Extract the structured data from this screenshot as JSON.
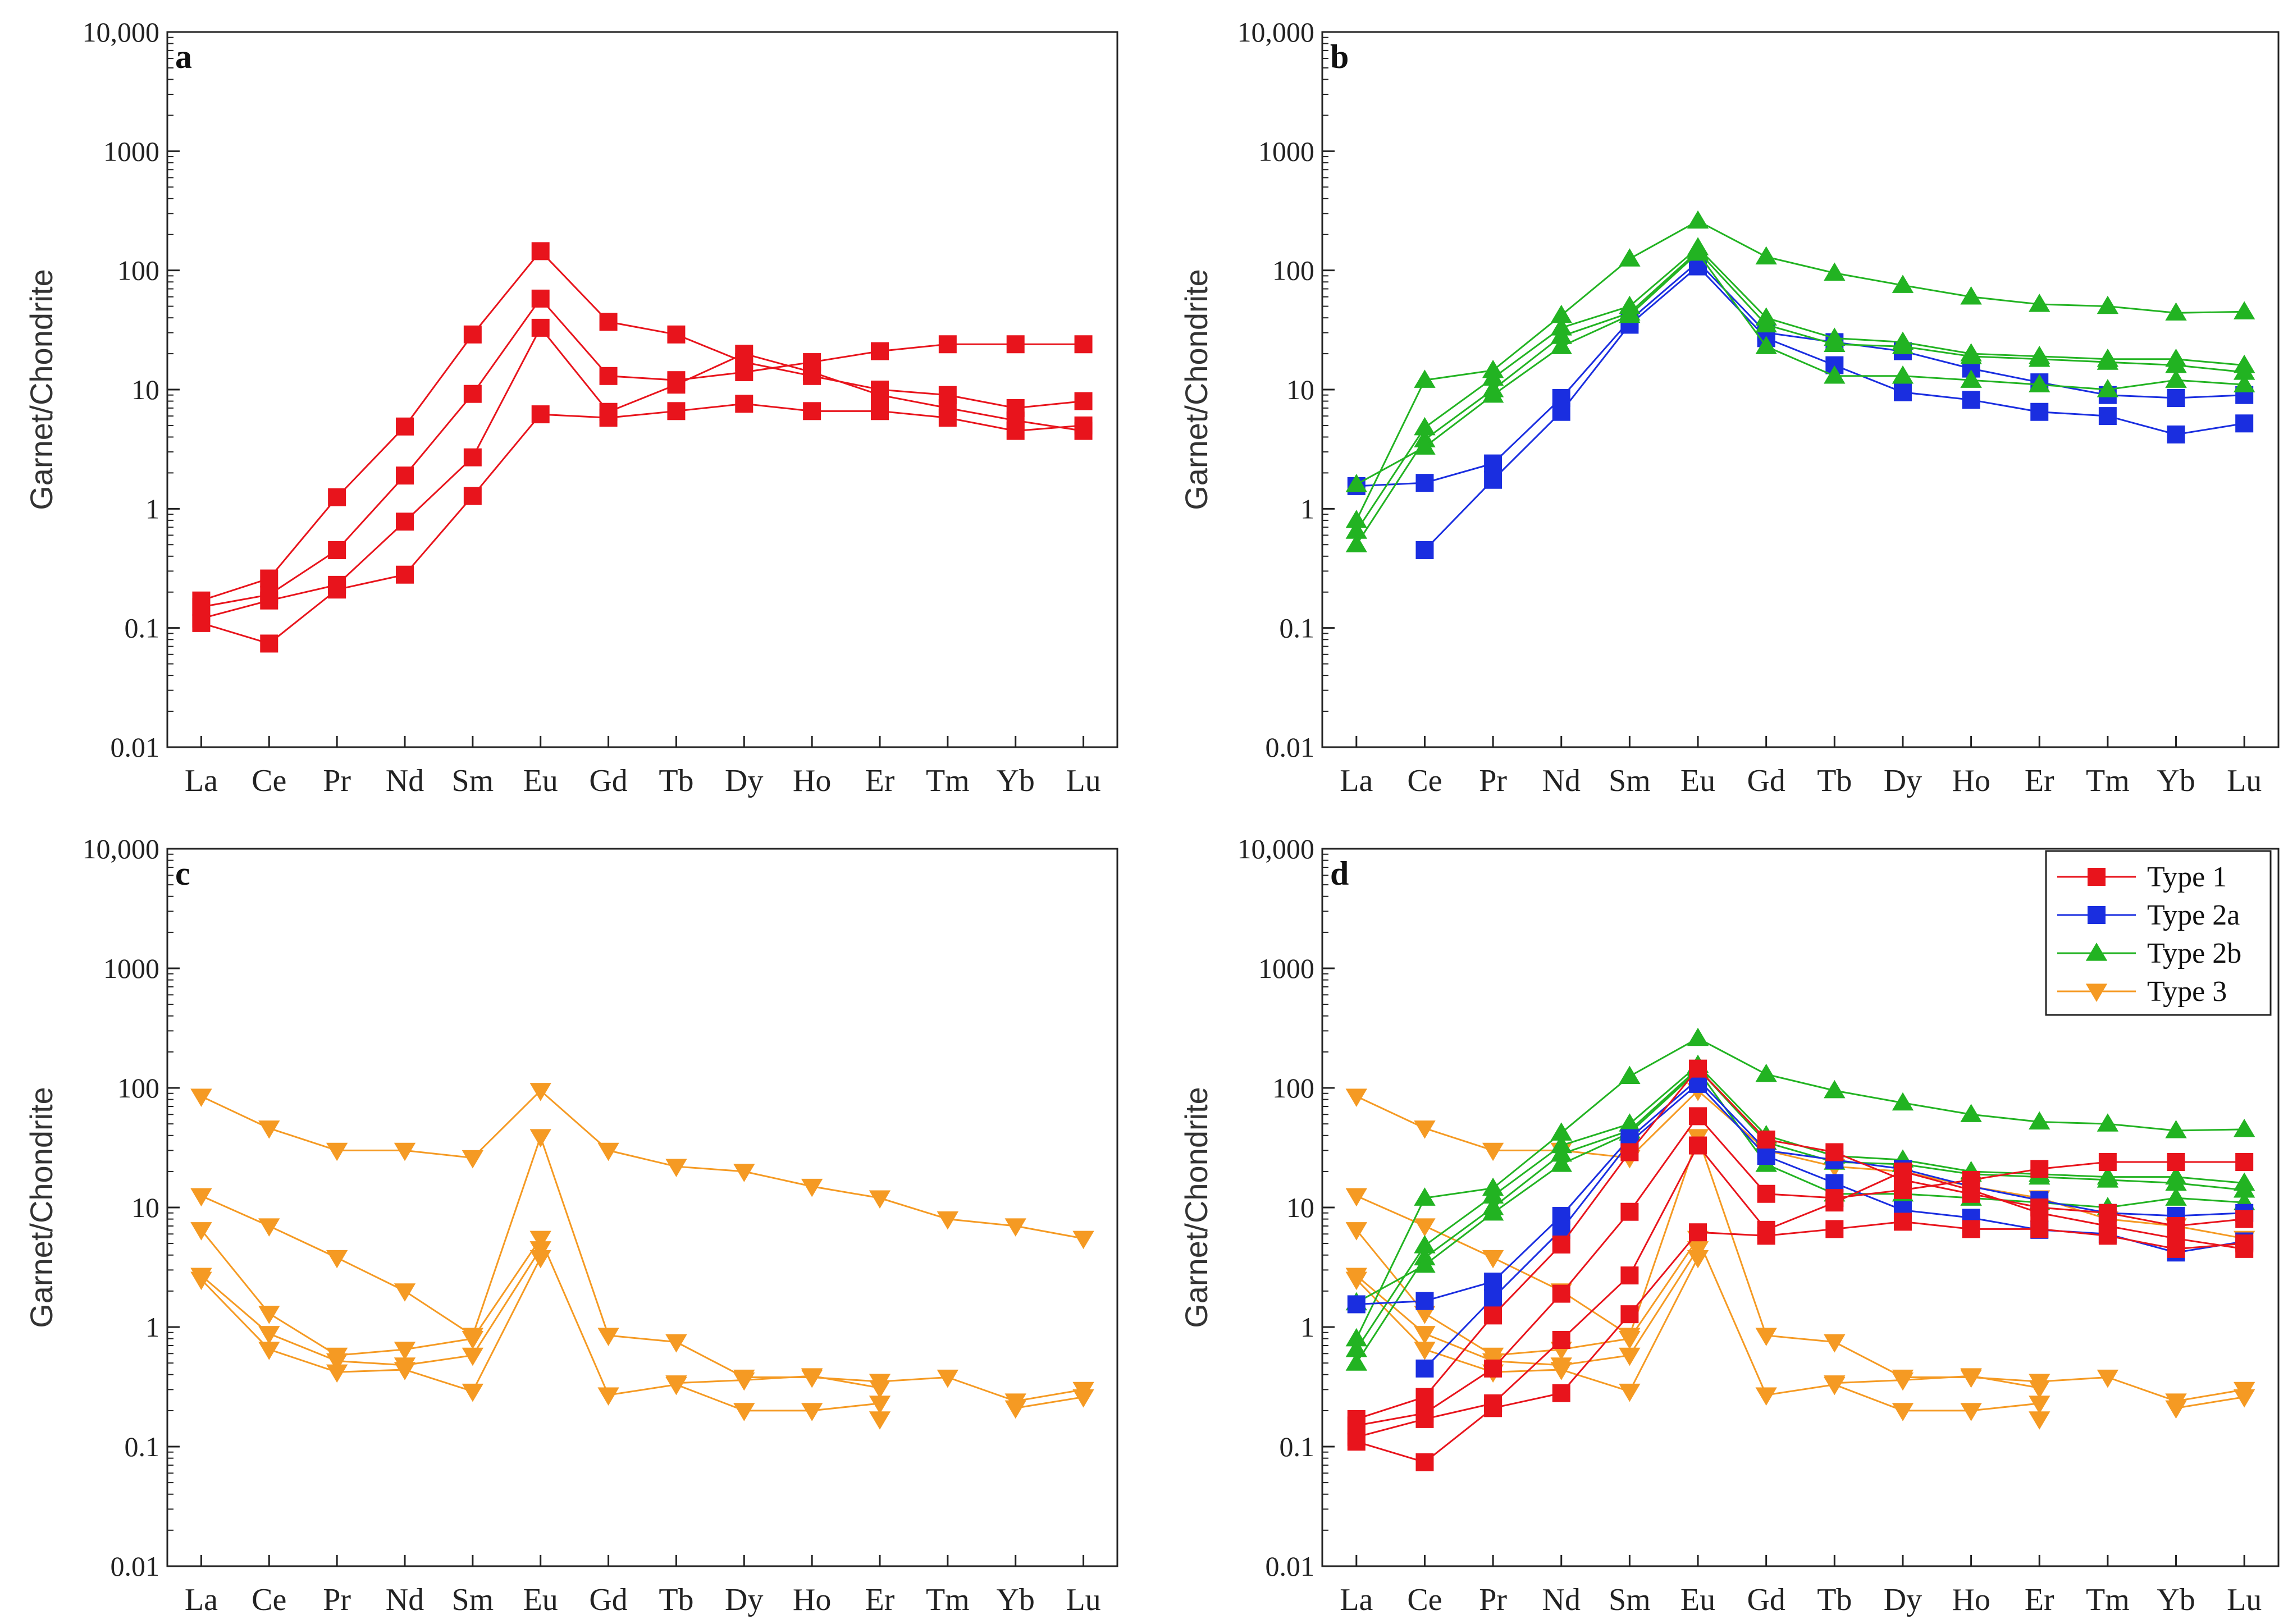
{
  "colors": {
    "type1": "#e8141c",
    "type2a": "#1a2ee0",
    "type2b": "#22b322",
    "type3": "#f59a23",
    "axis": "#222222"
  },
  "chart_data": [
    {
      "type": "line",
      "panel": "a",
      "ylabel": "Garnet/Chondrite",
      "yscale": "log",
      "ylim": [
        0.01,
        10000
      ],
      "yticks": [
        "0.01",
        "0.1",
        "1",
        "10",
        "100",
        "1000",
        "10,000"
      ],
      "categories": [
        "La",
        "Ce",
        "Pr",
        "Nd",
        "Sm",
        "Eu",
        "Gd",
        "Tb",
        "Dy",
        "Ho",
        "Er",
        "Tm",
        "Yb",
        "Lu"
      ],
      "series": [
        {
          "group": "type1",
          "values": [
            0.17,
            0.26,
            1.25,
            4.9,
            29,
            145,
            37,
            29,
            17,
            13,
            10,
            9,
            7,
            8
          ]
        },
        {
          "group": "type1",
          "values": [
            0.15,
            0.19,
            0.45,
            1.9,
            9.2,
            58,
            13,
            12,
            14,
            17,
            21,
            24,
            24,
            24
          ]
        },
        {
          "group": "type1",
          "values": [
            0.12,
            0.17,
            0.23,
            0.78,
            2.7,
            33,
            6.5,
            11,
            20,
            14,
            9,
            7,
            5.5,
            4.5
          ]
        },
        {
          "group": "type1",
          "values": [
            0.11,
            0.074,
            0.21,
            0.28,
            1.28,
            6.2,
            5.8,
            6.6,
            7.6,
            6.6,
            6.6,
            5.8,
            4.5,
            5.0
          ]
        }
      ]
    },
    {
      "type": "line",
      "panel": "b",
      "ylabel": "Garnet/Chondrite",
      "yscale": "log",
      "ylim": [
        0.01,
        10000
      ],
      "yticks": [
        "0.01",
        "0.1",
        "1",
        "10",
        "100",
        "1000",
        "10,000"
      ],
      "categories": [
        "La",
        "Ce",
        "Pr",
        "Nd",
        "Sm",
        "Eu",
        "Gd",
        "Tb",
        "Dy",
        "Ho",
        "Er",
        "Tm",
        "Yb",
        "Lu"
      ],
      "series": [
        {
          "group": "type2a",
          "values": [
            1.55,
            1.65,
            2.4,
            8.5,
            38,
            118,
            30,
            25,
            21,
            15,
            11.5,
            9,
            8.5,
            9
          ]
        },
        {
          "group": "type2a",
          "values": [
            null,
            0.45,
            1.75,
            6.5,
            35,
            108,
            27,
            16,
            9.5,
            8.2,
            6.5,
            6,
            4.2,
            5.2
          ]
        },
        {
          "group": "type2b",
          "values": [
            0.8,
            12,
            14.5,
            42,
            125,
            260,
            130,
            95,
            75,
            60,
            52,
            50,
            44,
            45
          ]
        },
        {
          "group": "type2b",
          "values": [
            0.65,
            4.8,
            12.5,
            33,
            50,
            155,
            40,
            27,
            25,
            20,
            19,
            18,
            18,
            16
          ]
        },
        {
          "group": "type2b",
          "values": [
            0.5,
            3.8,
            10,
            28,
            44,
            145,
            35,
            24,
            23,
            19,
            18,
            17,
            16,
            14
          ]
        },
        {
          "group": "type2b",
          "values": [
            1.6,
            3.3,
            9,
            23,
            42,
            140,
            23,
            13,
            13,
            12,
            11,
            10,
            12,
            11
          ]
        }
      ]
    },
    {
      "type": "line",
      "panel": "c",
      "ylabel": "Garnet/Chondrite",
      "yscale": "log",
      "ylim": [
        0.01,
        10000
      ],
      "yticks": [
        "0.01",
        "0.1",
        "1",
        "10",
        "100",
        "1000",
        "10,000"
      ],
      "categories": [
        "La",
        "Ce",
        "Pr",
        "Nd",
        "Sm",
        "Eu",
        "Gd",
        "Tb",
        "Dy",
        "Ho",
        "Er",
        "Tm",
        "Yb",
        "Lu"
      ],
      "series": [
        {
          "group": "type3",
          "values": [
            85,
            46,
            30,
            30,
            26,
            95,
            30,
            22,
            20,
            15,
            12,
            8,
            7,
            5.5
          ]
        },
        {
          "group": "type3",
          "values": [
            12.5,
            7,
            3.8,
            2.0,
            0.85,
            39,
            0.85,
            0.75,
            0.38,
            0.38,
            0.35,
            0.38,
            0.24,
            0.3
          ]
        },
        {
          "group": "type3",
          "values": [
            6.5,
            1.3,
            0.58,
            0.65,
            0.8,
            5.5,
            0.27,
            0.33,
            0.2,
            0.2,
            0.23,
            null,
            0.21,
            0.26
          ]
        },
        {
          "group": "type3",
          "values": [
            2.7,
            0.88,
            0.52,
            0.48,
            0.58,
            4.5,
            null,
            0.34,
            0.36,
            0.39,
            0.31,
            null,
            null,
            null
          ]
        },
        {
          "group": "type3",
          "values": [
            2.5,
            0.65,
            0.42,
            0.44,
            0.29,
            3.8,
            null,
            null,
            null,
            null,
            0.17,
            null,
            null,
            null
          ]
        }
      ]
    },
    {
      "type": "line",
      "panel": "d",
      "ylabel": "Garnet/Chondrite",
      "yscale": "log",
      "ylim": [
        0.01,
        10000
      ],
      "yticks": [
        "0.01",
        "0.1",
        "1",
        "10",
        "100",
        "1000",
        "10,000"
      ],
      "categories": [
        "La",
        "Ce",
        "Pr",
        "Nd",
        "Sm",
        "Eu",
        "Gd",
        "Tb",
        "Dy",
        "Ho",
        "Er",
        "Tm",
        "Yb",
        "Lu"
      ],
      "legend": [
        {
          "group": "type1",
          "label": "Type 1"
        },
        {
          "group": "type2a",
          "label": "Type 2a"
        },
        {
          "group": "type2b",
          "label": "Type 2b"
        },
        {
          "group": "type3",
          "label": "Type 3"
        }
      ],
      "legend_position": "top-right",
      "series": [
        {
          "group": "type3",
          "values": [
            85,
            46,
            30,
            30,
            26,
            95,
            30,
            22,
            20,
            15,
            12,
            8,
            7,
            5.5
          ]
        },
        {
          "group": "type3",
          "values": [
            12.5,
            7,
            3.8,
            2.0,
            0.85,
            39,
            0.85,
            0.75,
            0.38,
            0.38,
            0.35,
            0.38,
            0.24,
            0.3
          ]
        },
        {
          "group": "type3",
          "values": [
            6.5,
            1.3,
            0.58,
            0.65,
            0.8,
            5.5,
            0.27,
            0.33,
            0.2,
            0.2,
            0.23,
            null,
            0.21,
            0.26
          ]
        },
        {
          "group": "type3",
          "values": [
            2.7,
            0.88,
            0.52,
            0.48,
            0.58,
            4.5,
            null,
            0.34,
            0.36,
            0.39,
            0.31,
            null,
            null,
            null
          ]
        },
        {
          "group": "type3",
          "values": [
            2.5,
            0.65,
            0.42,
            0.44,
            0.29,
            3.8,
            null,
            null,
            null,
            null,
            0.17,
            null,
            null,
            null
          ]
        },
        {
          "group": "type2b",
          "values": [
            0.8,
            12,
            14.5,
            42,
            125,
            260,
            130,
            95,
            75,
            60,
            52,
            50,
            44,
            45
          ]
        },
        {
          "group": "type2b",
          "values": [
            0.65,
            4.8,
            12.5,
            33,
            50,
            155,
            40,
            27,
            25,
            20,
            19,
            18,
            18,
            16
          ]
        },
        {
          "group": "type2b",
          "values": [
            0.5,
            3.8,
            10,
            28,
            44,
            145,
            35,
            24,
            23,
            19,
            18,
            17,
            16,
            14
          ]
        },
        {
          "group": "type2b",
          "values": [
            1.6,
            3.3,
            9,
            23,
            42,
            140,
            23,
            13,
            13,
            12,
            11,
            10,
            12,
            11
          ]
        },
        {
          "group": "type2a",
          "values": [
            1.55,
            1.65,
            2.4,
            8.5,
            38,
            118,
            30,
            25,
            21,
            15,
            11.5,
            9,
            8.5,
            9
          ]
        },
        {
          "group": "type2a",
          "values": [
            null,
            0.45,
            1.75,
            6.5,
            35,
            108,
            27,
            16,
            9.5,
            8.2,
            6.5,
            6,
            4.2,
            5.2
          ]
        },
        {
          "group": "type1",
          "values": [
            0.17,
            0.26,
            1.25,
            4.9,
            29,
            145,
            37,
            29,
            17,
            13,
            10,
            9,
            7,
            8
          ]
        },
        {
          "group": "type1",
          "values": [
            0.15,
            0.19,
            0.45,
            1.9,
            9.2,
            58,
            13,
            12,
            14,
            17,
            21,
            24,
            24,
            24
          ]
        },
        {
          "group": "type1",
          "values": [
            0.12,
            0.17,
            0.23,
            0.78,
            2.7,
            33,
            6.5,
            11,
            20,
            14,
            9,
            7,
            5.5,
            4.5
          ]
        },
        {
          "group": "type1",
          "values": [
            0.11,
            0.074,
            0.21,
            0.28,
            1.28,
            6.2,
            5.8,
            6.6,
            7.6,
            6.6,
            6.6,
            5.8,
            4.5,
            5.0
          ]
        }
      ]
    }
  ]
}
